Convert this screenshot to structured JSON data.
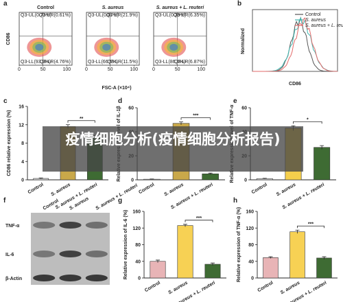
{
  "overlay_text": "疫情细胞分析(疫情细胞分析报告)",
  "chart_data": [
    {
      "type": "flow",
      "label": "a",
      "titles": [
        "Control",
        "S. aureus",
        "S. aureus + L. reuteri"
      ],
      "xlabel": "FSC-A (×10⁴)",
      "ylabel": "CD86",
      "xticks": [
        0,
        50,
        100
      ],
      "quadrants": [
        [
          "Q3-UL(0.73%)",
          "Q3-UR(0.61%)",
          "Q3-LL(93.9%)",
          "Q3-LR(4.76%)"
        ],
        [
          "Q3-UL(0.07%)",
          "Q3-UR(21.9%)",
          "Q3-LL(66.5%)",
          "Q3-LR(11.5%)"
        ],
        [
          "Q3-UL(0.39%)",
          "Q3-UR(6.35%)",
          "Q3-LL(86.4%)",
          "Q3-LR(6.87%)"
        ]
      ]
    },
    {
      "type": "density",
      "label": "b",
      "xlabel": "CD86",
      "ylabel": "Normalized",
      "series": [
        {
          "name": "Control",
          "color": "#555555"
        },
        {
          "name": "S. aureus",
          "color": "#3fb7b0"
        },
        {
          "name": "S. aureus + L. reuteri",
          "color": "#e36a6a"
        }
      ]
    },
    {
      "type": "bar",
      "label": "c",
      "ylabel": "CD86 relative expression (%)",
      "categories": [
        "Control",
        "S. aureus",
        "S. aureus + L. reuteri"
      ],
      "values": [
        0.3,
        11.6,
        9.2
      ],
      "errors": [
        0.1,
        0.4,
        0.5
      ],
      "colors": [
        "#d9d9d9",
        "#c9a84a",
        "#3e6b33"
      ],
      "ylim": [
        0,
        16
      ],
      "yticks": [
        0,
        4,
        8,
        12,
        16
      ],
      "significance": "**"
    },
    {
      "type": "bar",
      "label": "d",
      "ylabel": "Relative expression level of IL-1β",
      "categories": [
        "Control",
        "S. aureus",
        "S. aureus + L. reuteri"
      ],
      "values": [
        0.5,
        47,
        5
      ],
      "errors": [
        0.2,
        1.2,
        0.6
      ],
      "colors": [
        "#d9d9d9",
        "#c9a84a",
        "#3e6b33"
      ],
      "ylim": [
        0,
        60
      ],
      "yticks": [
        0,
        20,
        40,
        60
      ],
      "significance": "***"
    },
    {
      "type": "bar",
      "label": "e",
      "ylabel": "Relative expression level of TNF-α",
      "categories": [
        "Control",
        "S. aureus",
        "S. aureus + L. reuteri"
      ],
      "values": [
        1,
        43,
        27
      ],
      "errors": [
        0.3,
        2,
        1.5
      ],
      "colors": [
        "#d9d9d9",
        "#f5cf4c",
        "#3e6b33"
      ],
      "ylim": [
        0,
        60
      ],
      "yticks": [
        0,
        20,
        40,
        60
      ],
      "significance": "*"
    },
    {
      "type": "blot",
      "label": "f",
      "lanes": [
        "Control",
        "S. aureus",
        "S. aureus + L. reuteri"
      ],
      "rows": [
        "TNF-α",
        "IL-6",
        "β-Actin"
      ]
    },
    {
      "type": "bar",
      "label": "g",
      "ylabel": "Relative expression of IL-6 (%)",
      "categories": [
        "Control",
        "S. aureus",
        "S. aureus + L. reuteri"
      ],
      "values": [
        40,
        126,
        33
      ],
      "errors": [
        3,
        3,
        3
      ],
      "colors": [
        "#e8b4b6",
        "#f7d154",
        "#3e6b33"
      ],
      "ylim": [
        0,
        160
      ],
      "yticks": [
        0,
        40,
        80,
        120,
        160
      ],
      "significance": "***"
    },
    {
      "type": "bar",
      "label": "h",
      "ylabel": "Relative expression of TNF-α (%)",
      "categories": [
        "Control",
        "S. aureus",
        "S. aureus + L. reuteri"
      ],
      "values": [
        49,
        111,
        48
      ],
      "errors": [
        2,
        4,
        3
      ],
      "colors": [
        "#e8b4b6",
        "#f7d154",
        "#3e6b33"
      ],
      "ylim": [
        0,
        160
      ],
      "yticks": [
        0,
        40,
        80,
        120,
        160
      ],
      "significance": "***"
    }
  ]
}
